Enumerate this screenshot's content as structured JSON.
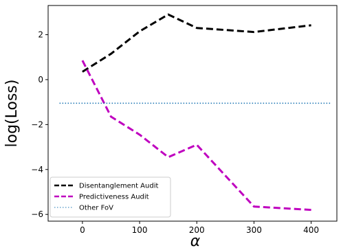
{
  "chart_data": {
    "type": "line",
    "xlabel": "α",
    "ylabel": "log(Loss)",
    "xlim": [
      -60,
      445
    ],
    "ylim": [
      -6.3,
      3.3
    ],
    "xticks": [
      0,
      100,
      200,
      300,
      400
    ],
    "yticks": [
      -6,
      -4,
      -2,
      0,
      2
    ],
    "xtick_labels": [
      "0",
      "100",
      "200",
      "300",
      "400"
    ],
    "ytick_labels": [
      "−6",
      "−4",
      "−2",
      "0",
      "2"
    ],
    "grid": false,
    "legend_position": "lower-left",
    "series": [
      {
        "name": "Disentanglement Audit",
        "color": "#000000",
        "style": "dashed",
        "x": [
          0,
          50,
          100,
          150,
          200,
          300,
          400
        ],
        "y": [
          0.35,
          1.15,
          2.15,
          2.9,
          2.3,
          2.12,
          2.42
        ]
      },
      {
        "name": "Predictiveness Audit",
        "color": "#bf00bf",
        "style": "dashed",
        "x": [
          0,
          50,
          100,
          150,
          200,
          300,
          400
        ],
        "y": [
          0.85,
          -1.65,
          -2.45,
          -3.45,
          -2.9,
          -5.65,
          -5.8
        ]
      },
      {
        "name": "Other FoV",
        "color": "#1f77b4",
        "style": "dotted",
        "x": [
          -40,
          435
        ],
        "y": [
          -1.05,
          -1.05
        ]
      }
    ]
  }
}
